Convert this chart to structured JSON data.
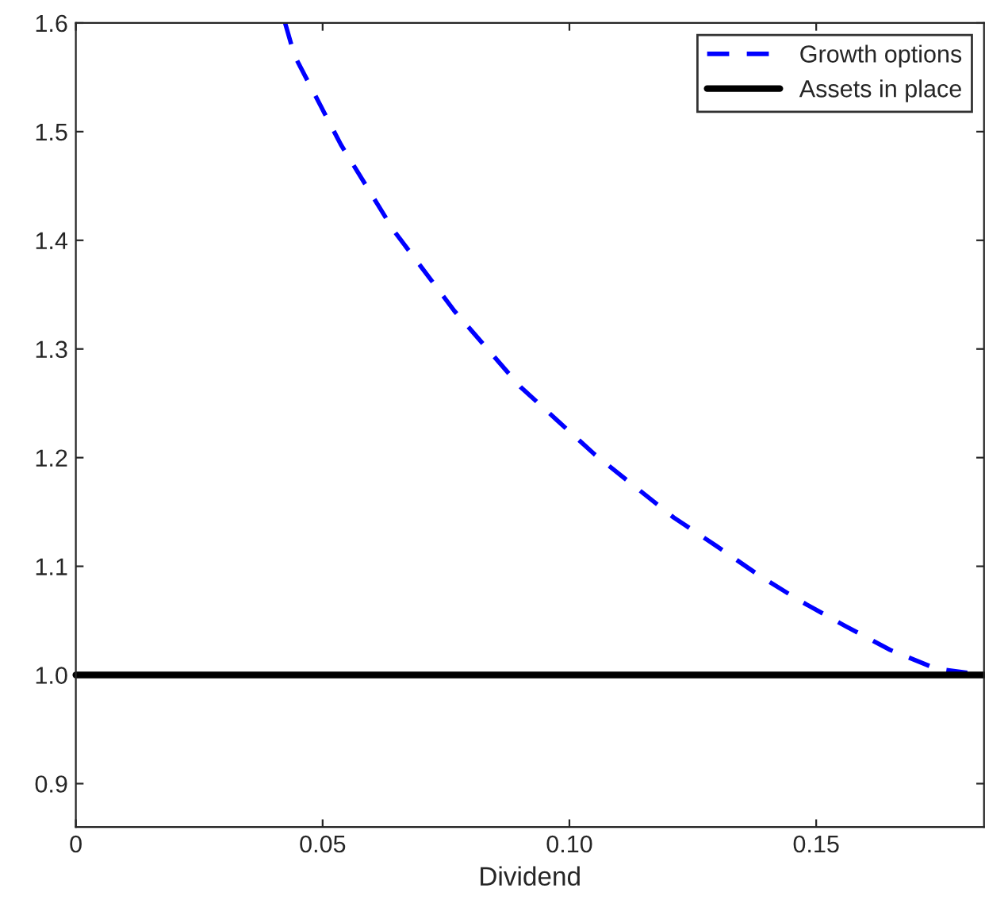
{
  "chart_data": {
    "type": "line",
    "xlabel": "Dividend",
    "series": [
      {
        "name": "Growth options",
        "color": "#0000ff",
        "line_style": "dashed",
        "x": [
          0.0424,
          0.0443,
          0.0537,
          0.0644,
          0.0767,
          0.0901,
          0.0976,
          0.1051,
          0.1131,
          0.1211,
          0.1297,
          0.1383,
          0.1468,
          0.1559,
          0.165,
          0.1742,
          0.1806
        ],
        "values": [
          1.6,
          1.57,
          1.488,
          1.409,
          1.335,
          1.265,
          1.234,
          1.203,
          1.174,
          1.145,
          1.119,
          1.092,
          1.068,
          1.045,
          1.023,
          1.006,
          1.002
        ]
      },
      {
        "name": "Assets in place",
        "color": "#000000",
        "line_style": "solid",
        "x": [
          0,
          0.184
        ],
        "values": [
          1.0,
          1.0
        ]
      }
    ],
    "xlim": [
      0,
      0.184
    ],
    "xticks": [
      0,
      {
        "value": 0.05,
        "label": "0.05"
      },
      {
        "value": 0.1,
        "label": "0.10"
      },
      0.15
    ],
    "ylim": [
      0.86,
      1.6
    ],
    "yticks": [
      {
        "value": 0.9,
        "label": "0.9"
      },
      {
        "value": 1.0,
        "label": "1.0"
      },
      1.1,
      1.2,
      1.3,
      1.4,
      1.5,
      1.6
    ],
    "grid": false,
    "legend": "top right"
  }
}
